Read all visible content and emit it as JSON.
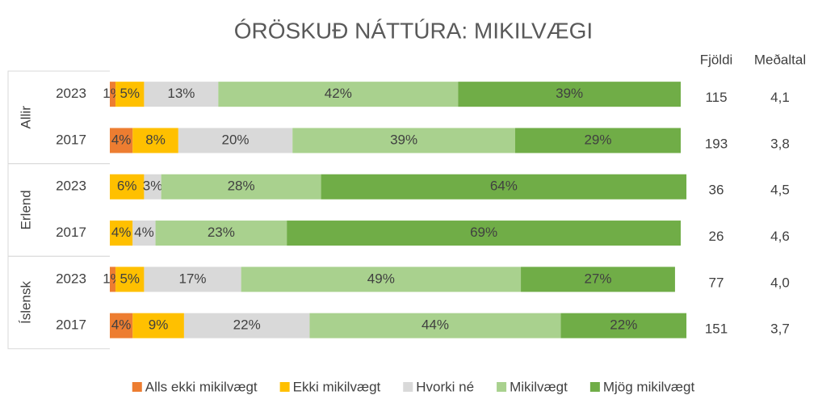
{
  "chart_data": {
    "type": "stacked-bar-100",
    "title": "ÓRÖSKUÐ NÁTTÚRA: MIKILVÆGI",
    "groups": [
      {
        "name": "Allir",
        "categories": [
          "2023",
          "2017"
        ]
      },
      {
        "name": "Erlend",
        "categories": [
          "2023",
          "2017"
        ]
      },
      {
        "name": "Íslensk",
        "categories": [
          "2023",
          "2017"
        ]
      }
    ],
    "xlim": [
      0,
      100
    ],
    "series": [
      {
        "name": "Alls ekki mikilvægt",
        "color": "#ED7D31",
        "values": [
          1,
          4,
          null,
          null,
          1,
          4
        ],
        "value_labels": [
          "1%",
          "4%",
          null,
          null,
          "1%",
          "4%"
        ]
      },
      {
        "name": "Ekki mikilvægt",
        "color": "#FFC000",
        "values": [
          5,
          8,
          6,
          4,
          5,
          9
        ],
        "value_labels": [
          "5%",
          "8%",
          "6%",
          "4%",
          "5%",
          "9%"
        ]
      },
      {
        "name": "Hvorki né",
        "color": "#D9D9D9",
        "values": [
          13,
          20,
          3,
          4,
          17,
          22
        ],
        "value_labels": [
          "13%",
          "20%",
          "3%",
          "4%",
          "17%",
          "22%"
        ]
      },
      {
        "name": "Mikilvægt",
        "color": "#A9D18E",
        "values": [
          42,
          39,
          28,
          23,
          49,
          44
        ],
        "value_labels": [
          "42%",
          "39%",
          "28%",
          "23%",
          "49%",
          "44%"
        ]
      },
      {
        "name": "Mjög mikilvægt",
        "color": "#70AD47",
        "values": [
          39,
          29,
          64,
          69,
          27,
          22
        ],
        "value_labels": [
          "39%",
          "29%",
          "64%",
          "69%",
          "27%",
          "22%"
        ]
      }
    ],
    "columns": [
      {
        "name": "Fjöldi",
        "values": [
          115,
          193,
          36,
          26,
          77,
          151
        ]
      },
      {
        "name": "Meðaltal",
        "values": [
          4.1,
          3.8,
          4.5,
          4.6,
          4.0,
          3.7
        ],
        "value_labels": [
          "4,1",
          "3,8",
          "4,5",
          "4,6",
          "4,0",
          "3,7"
        ]
      }
    ]
  }
}
